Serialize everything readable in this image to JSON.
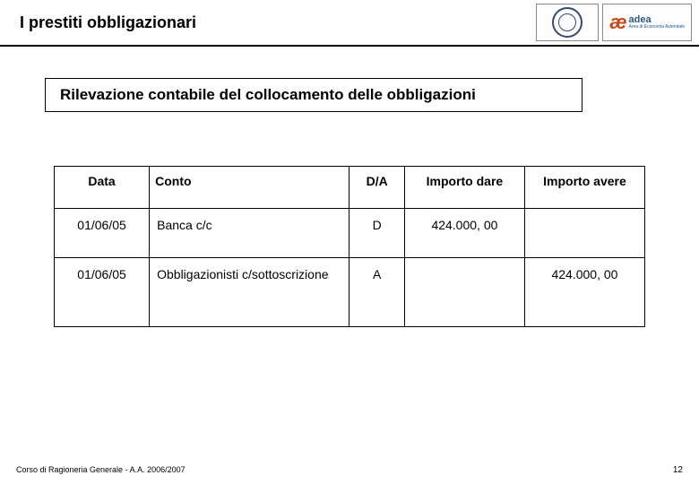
{
  "header": {
    "title": "I prestiti obbligazionari",
    "logo_adea_name": "adea",
    "logo_adea_sub": "Area di Economia Aziendale"
  },
  "subtitle": "Rilevazione contabile del collocamento delle obbligazioni",
  "table": {
    "columns": [
      "Data",
      "Conto",
      "D/A",
      "Importo dare",
      "Importo avere"
    ],
    "rows": [
      {
        "data": "01/06/05",
        "conto": "Banca c/c",
        "da": "D",
        "dare": "424.000, 00",
        "avere": ""
      },
      {
        "data": "01/06/05",
        "conto": "Obbligazionisti c/sottoscrizione",
        "da": "A",
        "dare": "",
        "avere": "424.000, 00"
      }
    ]
  },
  "footer": {
    "course": "Corso di Ragioneria Generale - A.A. 2006/2007",
    "page": "12"
  }
}
